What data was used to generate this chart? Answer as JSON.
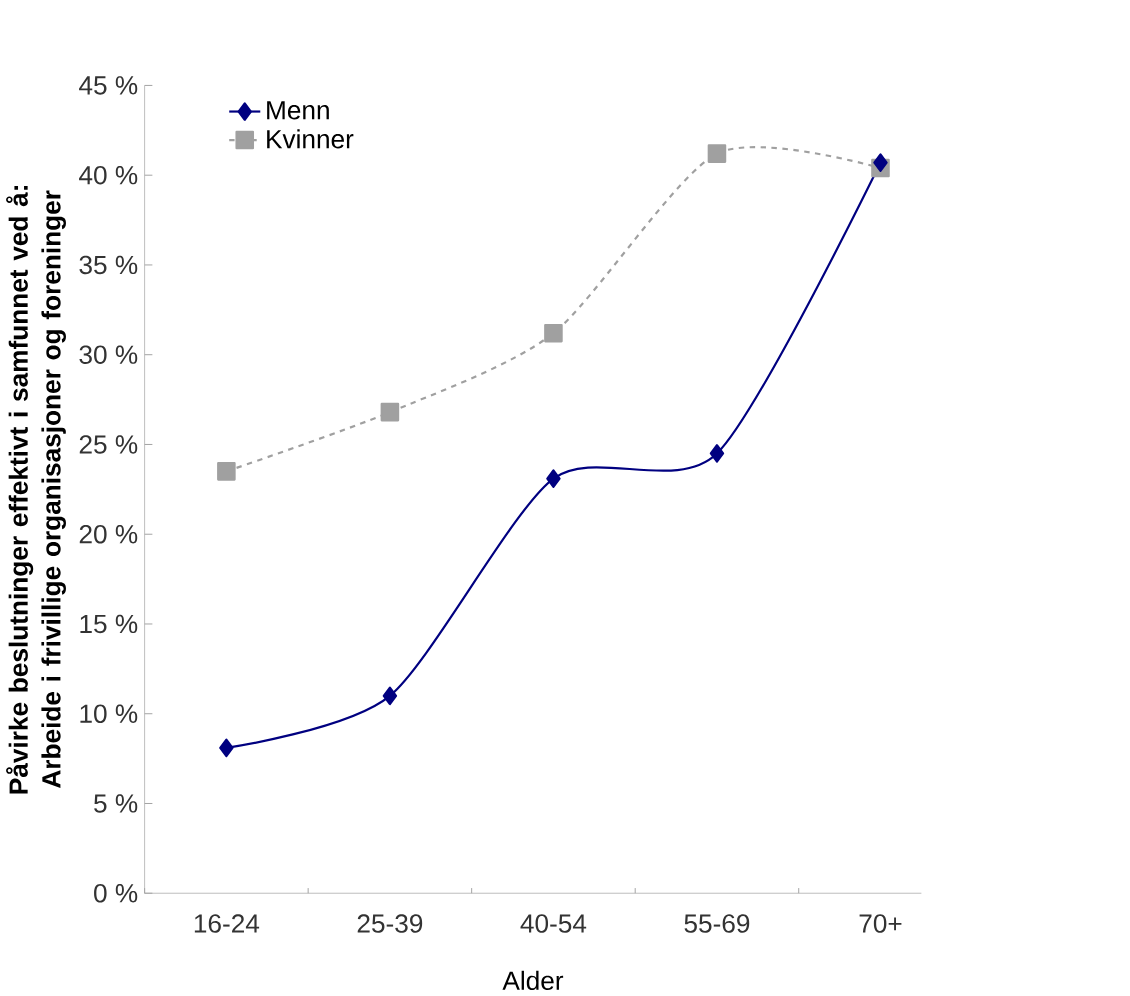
{
  "chart_data": {
    "type": "line",
    "xlabel": "Alder",
    "ylabel": "Påvirke beslutninger effektivt i samfunnet ved å: Arbeide i frivillige organisasjoner og foreninger",
    "categories": [
      "16-24",
      "25-39",
      "40-54",
      "55-69",
      "70+"
    ],
    "series": [
      {
        "name": "Menn",
        "color": "#000080",
        "marker": "diamond",
        "line_style": "solid",
        "values": [
          8.1,
          11.0,
          23.1,
          24.5,
          40.7
        ]
      },
      {
        "name": "Kvinner",
        "color": "#a0a0a0",
        "marker": "square",
        "line_style": "dashed",
        "values": [
          23.5,
          26.8,
          31.2,
          41.2,
          40.4
        ]
      }
    ],
    "ylim": [
      0,
      45
    ],
    "yticks": [
      {
        "value": 0,
        "label": "0 %"
      },
      {
        "value": 5,
        "label": "5 %"
      },
      {
        "value": 10,
        "label": "10 %"
      },
      {
        "value": 15,
        "label": "15 %"
      },
      {
        "value": 20,
        "label": "20 %"
      },
      {
        "value": 25,
        "label": "25 %"
      },
      {
        "value": 30,
        "label": "30 %"
      },
      {
        "value": 35,
        "label": "35 %"
      },
      {
        "value": 40,
        "label": "40 %"
      },
      {
        "value": 45,
        "label": "45 %"
      }
    ],
    "grid": false,
    "legend": "top left"
  }
}
